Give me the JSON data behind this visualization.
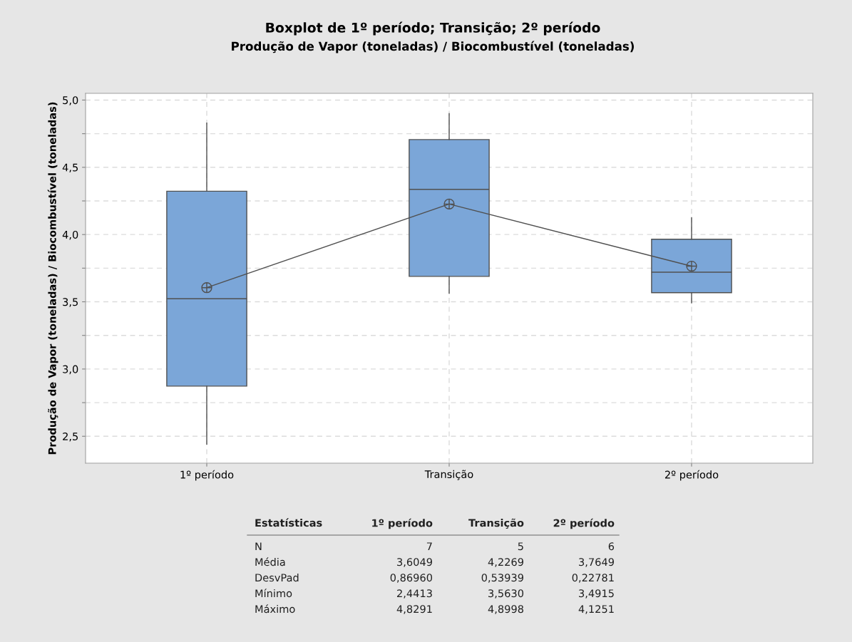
{
  "chart_data": {
    "type": "box",
    "title": "Boxplot de 1º período; Transição; 2º período",
    "subtitle": "Produção de Vapor (toneladas) / Biocombustível (toneladas)",
    "ylabel": "Produção de Vapor (toneladas) / Biocombustível (toneladas)",
    "categories": [
      "1º período",
      "Transição",
      "2º período"
    ],
    "color": "#7ba6d8",
    "boxes": [
      {
        "low": 2.4413,
        "q1": 2.873,
        "median": 3.523,
        "q3": 4.322,
        "high": 4.8291,
        "mean": 3.6049
      },
      {
        "low": 3.563,
        "q1": 3.689,
        "median": 4.336,
        "q3": 4.706,
        "high": 4.8998,
        "mean": 4.2269
      },
      {
        "low": 3.4915,
        "q1": 3.568,
        "median": 3.72,
        "q3": 3.965,
        "high": 4.1251,
        "mean": 3.7649
      }
    ],
    "series": [
      {
        "type": "line",
        "x": [
          "1º período",
          "Transição",
          "2º período"
        ],
        "values": [
          3.6049,
          4.2269,
          3.7649
        ],
        "color": "#505050"
      }
    ],
    "ylim": [
      2.3,
      5.05
    ],
    "yticks": [
      {
        "value": 2.5,
        "label": "2,5"
      },
      {
        "value": 2.75,
        "label": null
      },
      {
        "value": 3.0,
        "label": "3,0"
      },
      {
        "value": 3.25,
        "label": null
      },
      {
        "value": 3.5,
        "label": "3,5"
      },
      {
        "value": 3.75,
        "label": null
      },
      {
        "value": 4.0,
        "label": "4,0"
      },
      {
        "value": 4.25,
        "label": null
      },
      {
        "value": 4.5,
        "label": "4,5"
      },
      {
        "value": 4.75,
        "label": null
      },
      {
        "value": 5.0,
        "label": "5,0"
      }
    ],
    "grid": true,
    "annotations": [
      "Estatísticas",
      "1º período",
      "Transição",
      "2º período",
      "N",
      "7",
      "5",
      "6",
      "Média",
      "3,6049",
      "4,2269",
      "3,7649",
      "DesvPad",
      "0,86960",
      "0,53939",
      "0,22781",
      "Mínimo",
      "2,4413",
      "3,5630",
      "3,4915",
      "Máximo",
      "4,8291",
      "4,8998",
      "4,1251"
    ]
  }
}
